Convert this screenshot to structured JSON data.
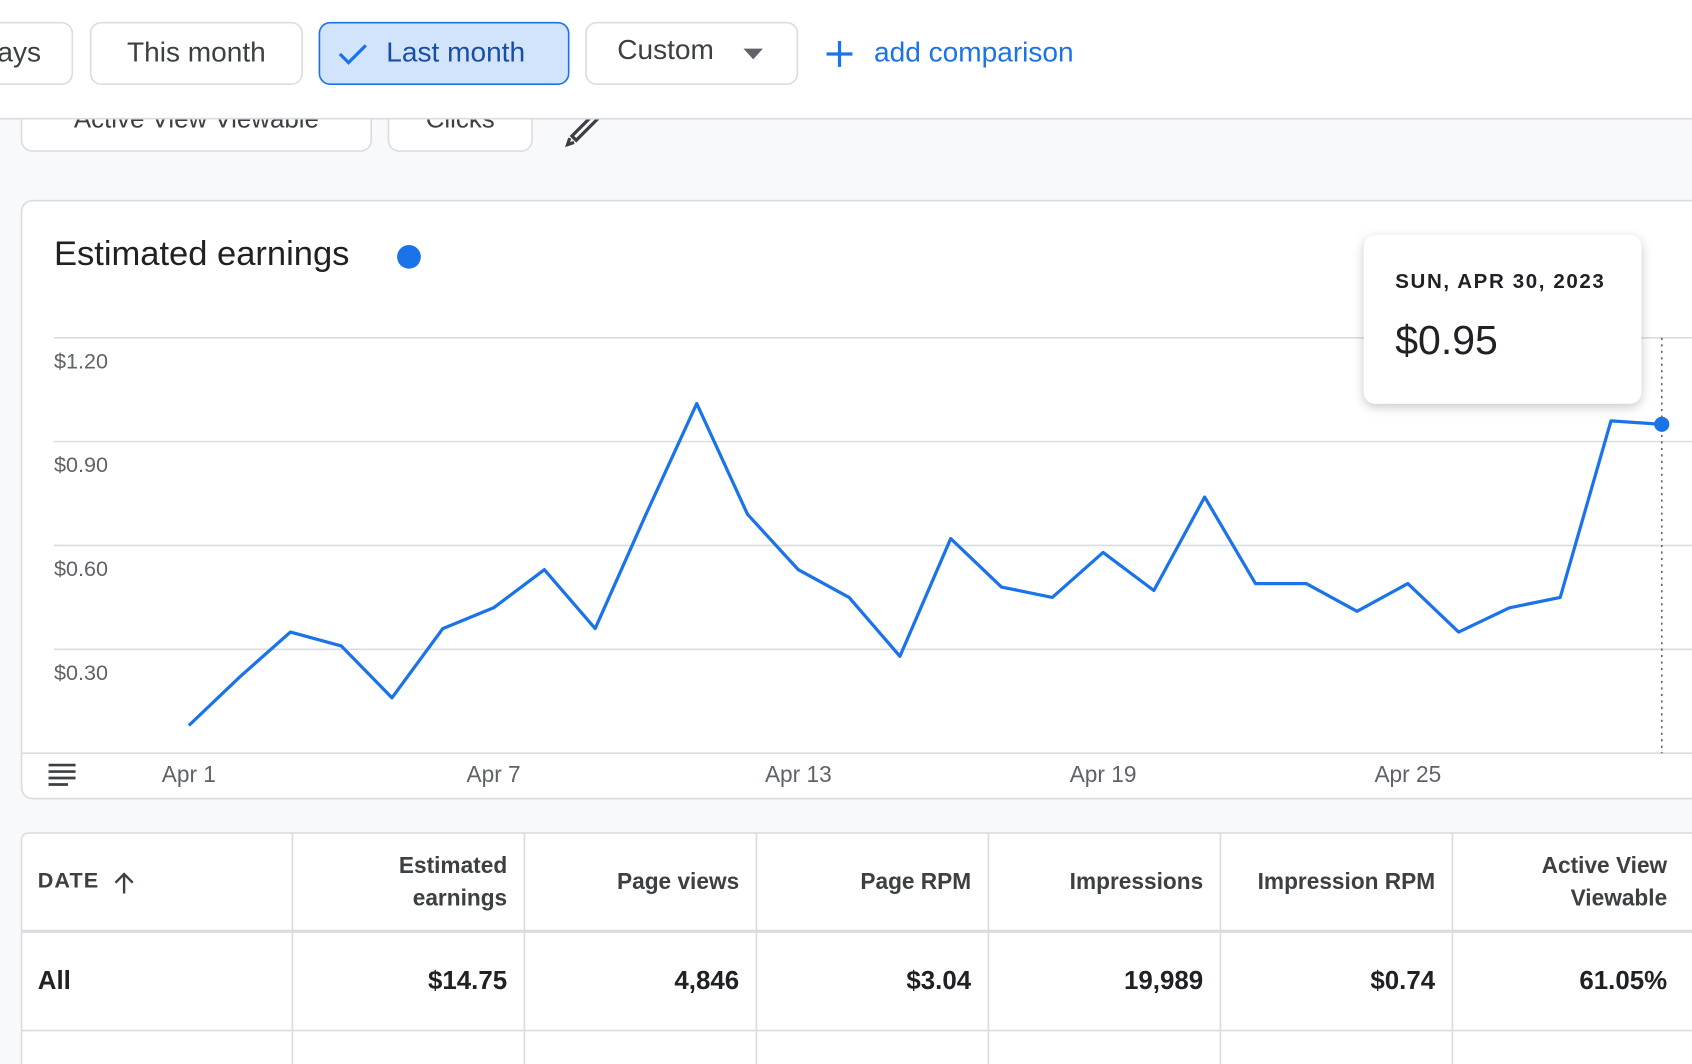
{
  "toolbar": {
    "chips": [
      {
        "label": "ays",
        "selected": false
      },
      {
        "label": "This month",
        "selected": false
      },
      {
        "label": "Last month",
        "selected": true
      },
      {
        "label": "Custom",
        "selected": false
      }
    ],
    "add_comparison": "add comparison"
  },
  "metric_chips": [
    "Active View Viewable",
    "Clicks"
  ],
  "chart_data": {
    "type": "line",
    "title": "Estimated earnings",
    "color": "#1a73e8",
    "categories": [
      "Apr 1",
      null,
      null,
      null,
      null,
      null,
      "Apr 7",
      null,
      null,
      null,
      null,
      null,
      "Apr 13",
      null,
      null,
      null,
      null,
      null,
      "Apr 19",
      null,
      null,
      null,
      null,
      null,
      "Apr 25",
      null,
      null,
      null,
      null,
      null
    ],
    "values": [
      0.08,
      0.22,
      0.35,
      0.31,
      0.16,
      0.36,
      0.42,
      0.53,
      0.36,
      0.69,
      1.01,
      0.69,
      0.53,
      0.45,
      0.28,
      0.62,
      0.48,
      0.45,
      0.58,
      0.47,
      0.74,
      0.49,
      0.49,
      0.41,
      0.49,
      0.35,
      0.42,
      0.45,
      0.96,
      0.95
    ],
    "ylim": [
      0,
      1.2
    ],
    "yticks": [
      {
        "value": 0.3,
        "label": "$0.30"
      },
      {
        "value": 0.6,
        "label": "$0.60"
      },
      {
        "value": 0.9,
        "label": "$0.90"
      },
      {
        "value": 1.2,
        "label": "$1.20"
      }
    ],
    "grid": true,
    "tooltip": {
      "title": "SUN, APR 30, 2023",
      "label": "$0.95"
    }
  },
  "table": {
    "columns": [
      "DATE",
      "Estimated earnings",
      "Page views",
      "Page RPM",
      "Impressions",
      "Impression RPM",
      "Active View Viewable"
    ],
    "rows": [
      [
        "All",
        "$14.75",
        "4,846",
        "$3.04",
        "19,989",
        "$0.74",
        "61.05%"
      ]
    ]
  }
}
